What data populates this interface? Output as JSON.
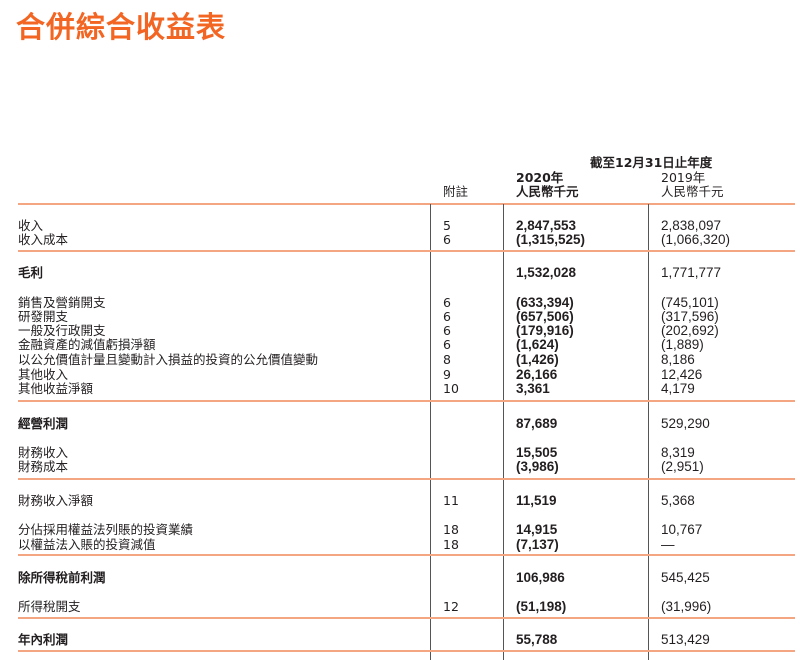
{
  "title": "合併綜合收益表",
  "header": {
    "period": "截至12月31日止年度",
    "note": "附註",
    "year_2020": "2020年",
    "unit_2020": "人民幣千元",
    "year_2019": "2019年",
    "unit_2019": "人民幣千元"
  },
  "rows": [
    {
      "label": "收入",
      "note": "5",
      "y2020": "2,847,553",
      "y2019": "2,838,097"
    },
    {
      "label": "收入成本",
      "note": "6",
      "y2020": "(1,315,525)",
      "y2019": "(1,066,320)"
    },
    {
      "label": "毛利",
      "note": "",
      "y2020": "1,532,028",
      "y2019": "1,771,777"
    },
    {
      "label": "銷售及營銷開支",
      "note": "6",
      "y2020": "(633,394)",
      "y2019": "(745,101)"
    },
    {
      "label": "研發開支",
      "note": "6",
      "y2020": "(657,506)",
      "y2019": "(317,596)"
    },
    {
      "label": "一般及行政開支",
      "note": "6",
      "y2020": "(179,916)",
      "y2019": "(202,692)"
    },
    {
      "label": "金融資產的減值虧損淨額",
      "note": "6",
      "y2020": "(1,624)",
      "y2019": "(1,889)"
    },
    {
      "label": "以公允價值計量且變動計入損益的投資的公允價值變動",
      "note": "8",
      "y2020": "(1,426)",
      "y2019": "8,186"
    },
    {
      "label": "其他收入",
      "note": "9",
      "y2020": "26,166",
      "y2019": "12,426"
    },
    {
      "label": "其他收益淨額",
      "note": "10",
      "y2020": "3,361",
      "y2019": "4,179"
    },
    {
      "label": "經營利潤",
      "note": "",
      "y2020": "87,689",
      "y2019": "529,290"
    },
    {
      "label": "財務收入",
      "note": "",
      "y2020": "15,505",
      "y2019": "8,319"
    },
    {
      "label": "財務成本",
      "note": "",
      "y2020": "(3,986)",
      "y2019": "(2,951)"
    },
    {
      "label": "財務收入淨額",
      "note": "11",
      "y2020": "11,519",
      "y2019": "5,368"
    },
    {
      "label": "分佔採用權益法列賬的投資業績",
      "note": "18",
      "y2020": "14,915",
      "y2019": "10,767"
    },
    {
      "label": "以權益法入賬的投資減值",
      "note": "18",
      "y2020": "(7,137)",
      "y2019": "—"
    },
    {
      "label": "除所得稅前利潤",
      "note": "",
      "y2020": "106,986",
      "y2019": "545,425"
    },
    {
      "label": "所得稅開支",
      "note": "12",
      "y2020": "(51,198)",
      "y2019": "(31,996)"
    },
    {
      "label": "年內利潤",
      "note": "",
      "y2020": "55,788",
      "y2019": "513,429"
    }
  ],
  "colors": {
    "accent": "#f26522",
    "rule": "#f4a582"
  }
}
